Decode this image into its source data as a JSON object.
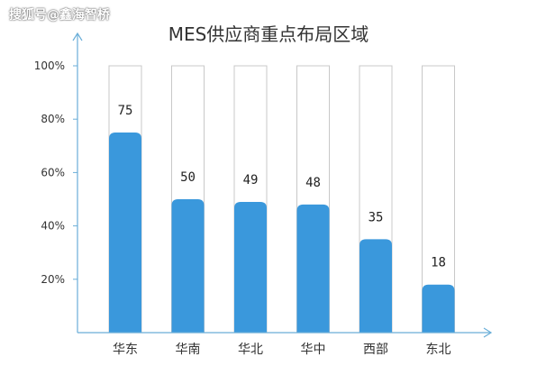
{
  "watermark": "搜狐号@鑫海智桥",
  "chart_data": {
    "type": "bar",
    "title": "MES供应商重点布局区域",
    "xlabel": "",
    "ylabel": "",
    "categories": [
      "华东",
      "华南",
      "华北",
      "华中",
      "西部",
      "东北"
    ],
    "values": [
      75,
      50,
      49,
      48,
      35,
      18
    ],
    "data_labels": [
      "75",
      "50",
      "49",
      "48",
      "35",
      "18"
    ],
    "yticks": [
      20,
      40,
      60,
      80,
      100
    ],
    "ytick_labels": [
      "20%",
      "40%",
      "60%",
      "80%",
      "100%"
    ],
    "ylim": [
      0,
      100
    ],
    "grid": false,
    "bar_color": "#3a98dc",
    "track_color": "#c8c8c8",
    "axis_color": "#6aaed8"
  }
}
